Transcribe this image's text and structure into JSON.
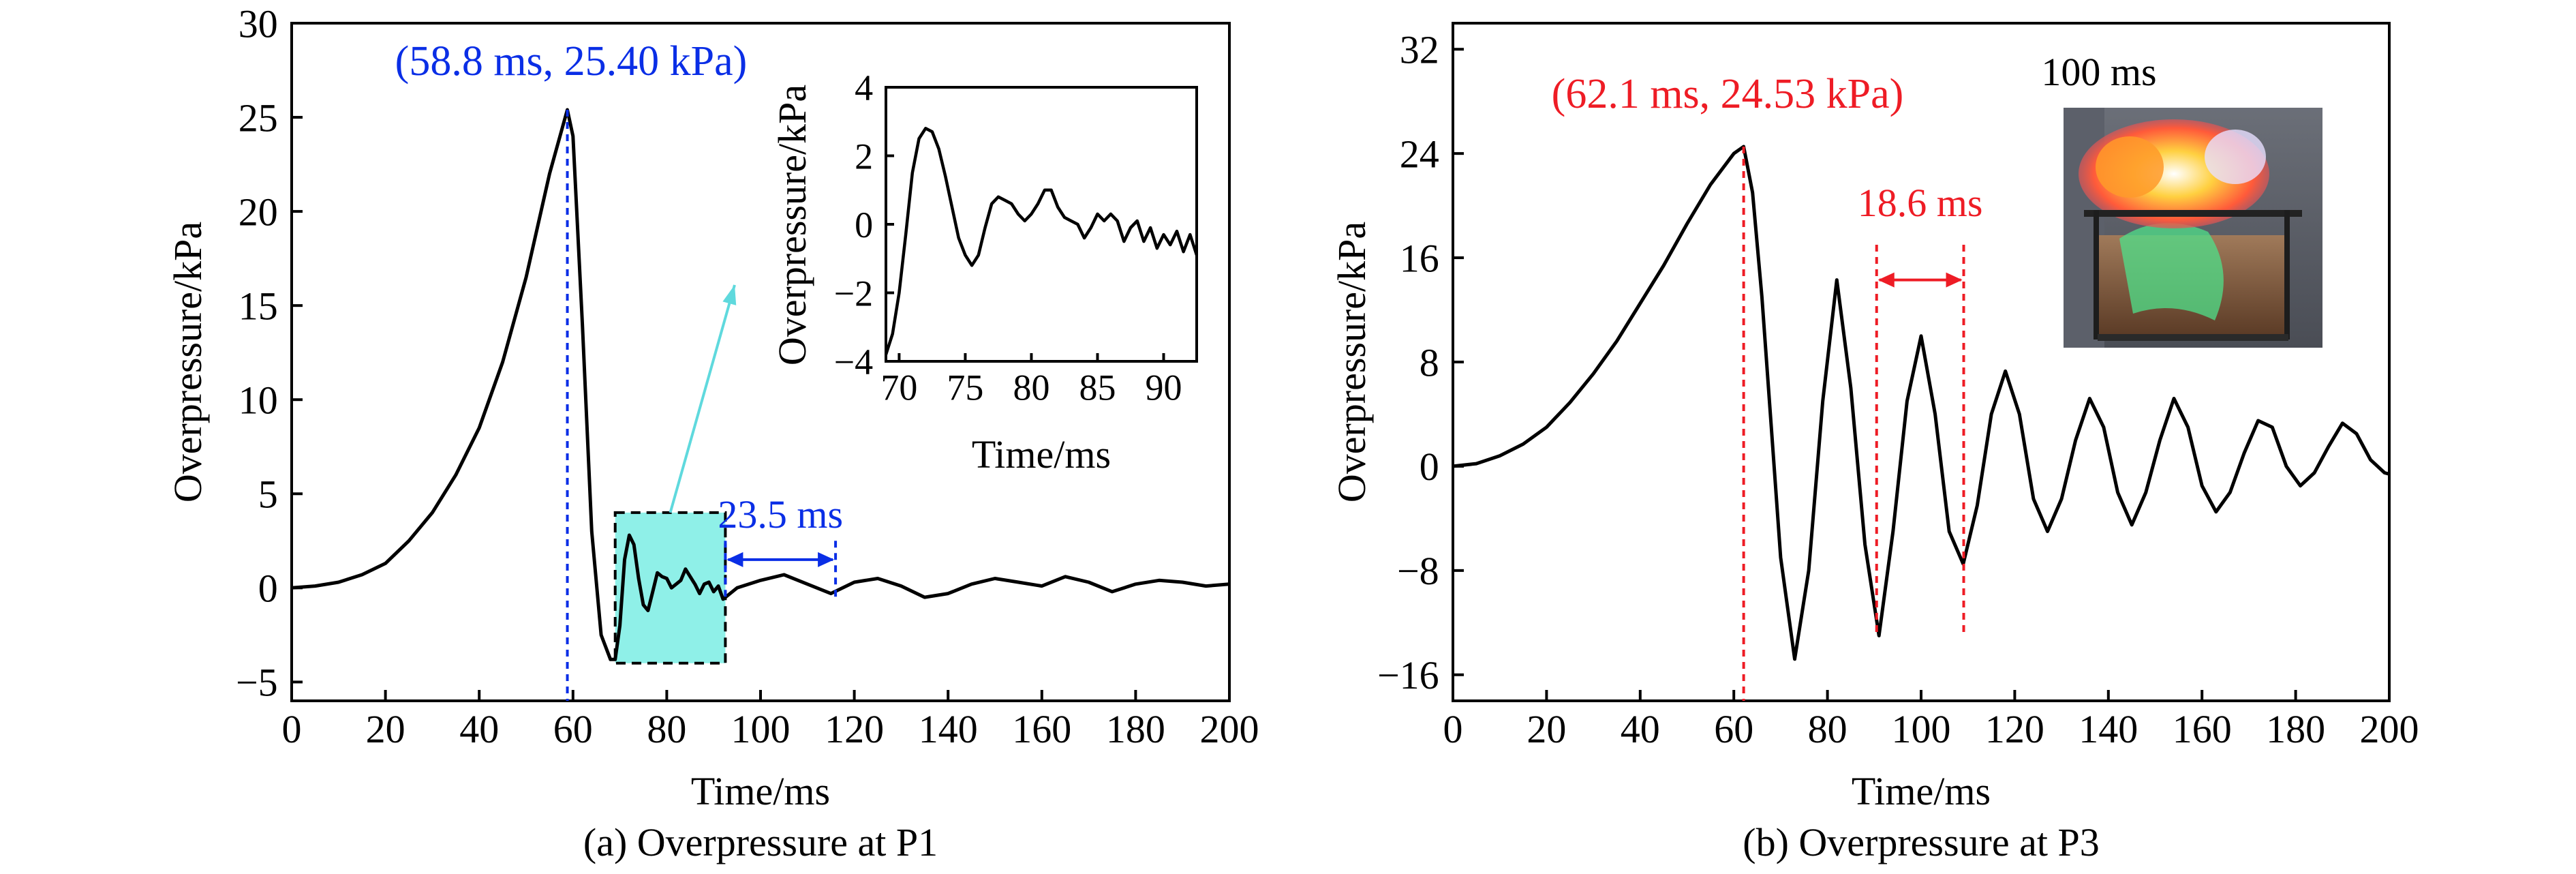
{
  "colors": {
    "axis": "#000000",
    "blue": "#0a2ee6",
    "red": "#ee1c25",
    "highlight": "#8ff0e8",
    "arrow_cyan": "#5fd9dd"
  },
  "chart_data": [
    {
      "id": "a",
      "type": "line",
      "caption": "(a) Overpressure at P1",
      "xlabel": "Time/ms",
      "ylabel": "Overpressure/kPa",
      "xlim": [
        0,
        200
      ],
      "ylim": [
        -6,
        30
      ],
      "xticks": [
        0,
        20,
        40,
        60,
        80,
        100,
        120,
        140,
        160,
        180,
        200
      ],
      "yticks": [
        -5,
        0,
        5,
        10,
        15,
        20,
        25,
        30
      ],
      "series": [
        {
          "x": [
            0,
            5,
            10,
            15,
            20,
            25,
            30,
            35,
            40,
            45,
            50,
            55,
            58.8,
            60,
            62,
            64,
            66,
            68,
            69,
            70,
            71,
            72,
            73,
            74,
            75,
            76,
            77,
            78,
            79,
            80,
            81,
            82,
            83,
            84,
            85,
            86,
            87,
            88,
            89,
            90,
            91,
            92,
            95,
            100,
            105,
            110,
            115,
            120,
            125,
            130,
            135,
            140,
            145,
            150,
            155,
            160,
            165,
            170,
            175,
            180,
            185,
            190,
            195,
            200
          ],
          "y": [
            0,
            0.1,
            0.3,
            0.7,
            1.3,
            2.5,
            4.0,
            6.0,
            8.5,
            12.0,
            16.5,
            22.0,
            25.4,
            24.0,
            14.0,
            3.0,
            -2.5,
            -3.8,
            -3.8,
            -2.0,
            1.5,
            2.8,
            2.3,
            0.5,
            -0.9,
            -1.2,
            -0.2,
            0.8,
            0.6,
            0.5,
            0.0,
            0.2,
            0.4,
            1.0,
            0.6,
            0.2,
            -0.3,
            0.2,
            0.3,
            -0.2,
            0.1,
            -0.6,
            0.0,
            0.4,
            0.7,
            0.2,
            -0.3,
            0.3,
            0.5,
            0.1,
            -0.5,
            -0.3,
            0.2,
            0.5,
            0.3,
            0.1,
            0.6,
            0.3,
            -0.2,
            0.2,
            0.4,
            0.3,
            0.1,
            0.2
          ]
        }
      ],
      "annotations": {
        "peak_label": "(58.8 ms, 25.40 kPa)",
        "peak_x": 58.8,
        "peak_y": 25.4,
        "period_label": "23.5 ms",
        "period_start": 92.5,
        "period_end": 116.0,
        "highlight_box": {
          "x0": 69,
          "x1": 92.5,
          "y0": -4,
          "y1": 4
        }
      },
      "inset": {
        "xlabel": "Time/ms",
        "ylabel": "Overpressure/kPa",
        "xlim": [
          69,
          92.5
        ],
        "ylim": [
          -4,
          4
        ],
        "xticks": [
          70,
          75,
          80,
          85,
          90
        ],
        "yticks": [
          -4,
          -2,
          0,
          2,
          4
        ],
        "x": [
          69,
          69.5,
          70,
          70.5,
          71,
          71.5,
          72,
          72.5,
          73,
          73.5,
          74,
          74.5,
          75,
          75.5,
          76,
          76.5,
          77,
          77.5,
          78,
          78.5,
          79,
          79.5,
          80,
          80.5,
          81,
          81.5,
          82,
          82.5,
          83,
          83.5,
          84,
          84.5,
          85,
          85.5,
          86,
          86.5,
          87,
          87.5,
          88,
          88.5,
          89,
          89.5,
          90,
          90.5,
          91,
          91.5,
          92,
          92.5
        ],
        "y": [
          -3.8,
          -3.2,
          -2.0,
          -0.3,
          1.5,
          2.5,
          2.8,
          2.7,
          2.2,
          1.4,
          0.5,
          -0.4,
          -0.9,
          -1.2,
          -0.9,
          -0.1,
          0.6,
          0.8,
          0.7,
          0.6,
          0.3,
          0.1,
          0.3,
          0.6,
          1.0,
          1.0,
          0.5,
          0.2,
          0.1,
          0.0,
          -0.4,
          -0.1,
          0.3,
          0.1,
          0.3,
          0.1,
          -0.5,
          -0.1,
          0.1,
          -0.5,
          -0.1,
          -0.7,
          -0.3,
          -0.6,
          -0.2,
          -0.8,
          -0.3,
          -0.9
        ]
      }
    },
    {
      "id": "b",
      "type": "line",
      "caption": "(b) Overpressure at P3",
      "xlabel": "Time/ms",
      "ylabel": "Overpressure/kPa",
      "xlim": [
        0,
        200
      ],
      "ylim": [
        -18,
        34
      ],
      "xticks": [
        0,
        20,
        40,
        60,
        80,
        100,
        120,
        140,
        160,
        180,
        200
      ],
      "yticks": [
        -16,
        -8,
        0,
        8,
        16,
        24,
        32
      ],
      "series": [
        {
          "x": [
            0,
            5,
            10,
            15,
            20,
            25,
            30,
            35,
            40,
            45,
            50,
            55,
            60,
            62.1,
            64,
            66,
            68,
            70,
            73,
            76,
            79,
            82,
            85,
            88,
            91,
            94,
            97,
            100,
            103,
            106,
            109,
            112,
            115,
            118,
            121,
            124,
            127,
            130,
            133,
            136,
            139,
            142,
            145,
            148,
            151,
            154,
            157,
            160,
            163,
            166,
            169,
            172,
            175,
            178,
            181,
            184,
            187,
            190,
            193,
            196,
            199,
            200
          ],
          "y": [
            0,
            0.2,
            0.8,
            1.7,
            3.0,
            4.9,
            7.1,
            9.6,
            12.5,
            15.4,
            18.6,
            21.6,
            24.0,
            24.53,
            21.0,
            13.0,
            3.0,
            -7.0,
            -14.8,
            -8.0,
            5.0,
            14.3,
            6.0,
            -6.0,
            -13.0,
            -5.0,
            5.0,
            10.0,
            4.0,
            -5.0,
            -7.5,
            -3.0,
            4.0,
            7.3,
            4.0,
            -2.5,
            -5.0,
            -2.5,
            2.0,
            5.2,
            3.0,
            -2.0,
            -4.5,
            -2.0,
            2.0,
            5.2,
            3.0,
            -1.5,
            -3.5,
            -2.0,
            1.0,
            3.5,
            3.0,
            0.0,
            -1.5,
            -0.5,
            1.5,
            3.3,
            2.5,
            0.5,
            -0.5,
            -0.6
          ]
        }
      ],
      "annotations": {
        "peak_label": "(62.1 ms, 24.53 kPa)",
        "peak_x": 62.1,
        "peak_y": 24.53,
        "period_label": "18.6 ms",
        "period_start": 90.5,
        "period_end": 109.1,
        "photo_label": "100 ms"
      }
    }
  ]
}
